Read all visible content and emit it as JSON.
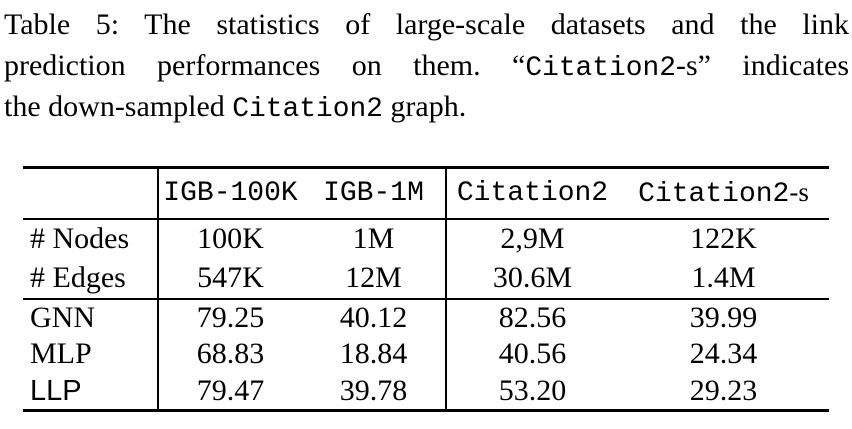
{
  "caption": {
    "line1": "Table 5: The statistics of large-scale datasets and the link",
    "line2": {
      "pre": "prediction performances on them. “",
      "mono": "Citation2",
      "post": "-s” indicates"
    },
    "line3": {
      "pre": "the down-sampled ",
      "mono": "Citation2",
      "post": " graph."
    }
  },
  "table": {
    "header": {
      "c1": "IGB-100K",
      "c2": "IGB-1M",
      "c3": "Citation2",
      "c4_mono": "Citation2",
      "c4_suffix": "-s"
    },
    "stats_rows": [
      {
        "label": "# Nodes",
        "values": [
          "100K",
          "1M",
          "2,9M",
          "122K"
        ]
      },
      {
        "label": "# Edges",
        "values": [
          "547K",
          "12M",
          "30.6M",
          "1.4M"
        ]
      }
    ],
    "method_rows": [
      {
        "label": "GNN",
        "values": [
          "79.25",
          "40.12",
          "82.56",
          "39.99"
        ]
      },
      {
        "label": "MLP",
        "values": [
          "68.83",
          "18.84",
          "40.56",
          "24.34"
        ]
      },
      {
        "label": "LLP",
        "values": [
          "79.47",
          "39.78",
          "53.20",
          "29.23"
        ]
      }
    ]
  },
  "colors": {
    "background": "#ffffff",
    "text": "#000000",
    "rule": "#000000"
  }
}
